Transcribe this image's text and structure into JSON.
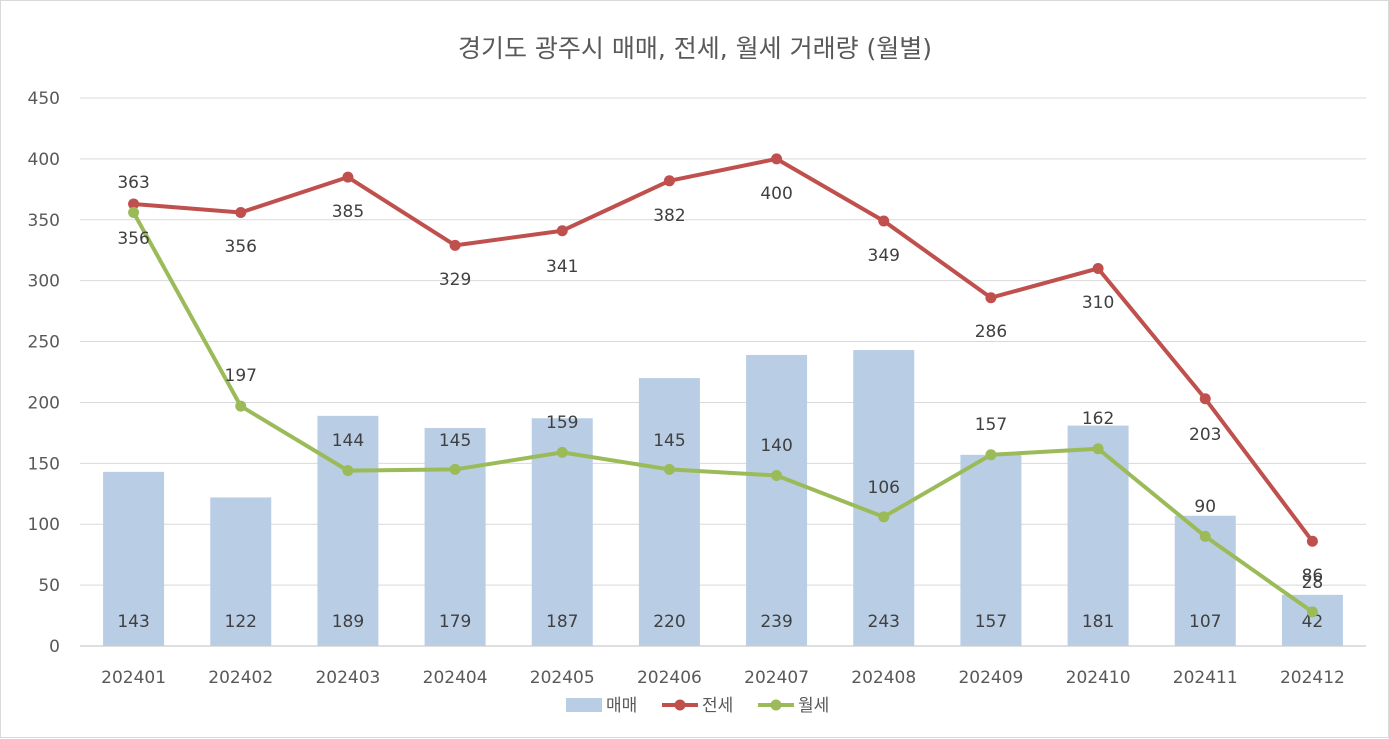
{
  "chart_data": {
    "type": "bar",
    "title": "경기도 광주시 매매, 전세, 월세 거래량 (월별)",
    "categories": [
      "202401",
      "202402",
      "202403",
      "202404",
      "202405",
      "202406",
      "202407",
      "202408",
      "202409",
      "202410",
      "202411",
      "202412"
    ],
    "ylim": [
      0,
      450
    ],
    "yticks": [
      0,
      50,
      100,
      150,
      200,
      250,
      300,
      350,
      400,
      450
    ],
    "grid": true,
    "legend": "bottom",
    "series": [
      {
        "name": "매매",
        "type": "bar",
        "color": "#b9cde5",
        "values": [
          143,
          122,
          189,
          179,
          187,
          220,
          239,
          243,
          157,
          181,
          107,
          42
        ]
      },
      {
        "name": "전세",
        "type": "line",
        "color": "#c0504d",
        "values": [
          363,
          356,
          385,
          329,
          341,
          382,
          400,
          349,
          286,
          310,
          203,
          86
        ]
      },
      {
        "name": "월세",
        "type": "line",
        "color": "#9bbb59",
        "values": [
          356,
          197,
          144,
          145,
          159,
          145,
          140,
          106,
          157,
          162,
          90,
          28
        ]
      }
    ],
    "data_labels": {
      "bar": [
        "143",
        "122",
        "189",
        "179",
        "187",
        "220",
        "239",
        "243",
        "157",
        "181",
        "107",
        "42"
      ],
      "line_1": [
        "363",
        "356",
        "385",
        "329",
        "341",
        "382",
        "400",
        "349",
        "286",
        "310",
        "203",
        "86"
      ],
      "line_2": [
        "356",
        "197",
        "144",
        "145",
        "159",
        "145",
        "140",
        "106",
        "157",
        "162",
        "90",
        "28"
      ]
    }
  }
}
